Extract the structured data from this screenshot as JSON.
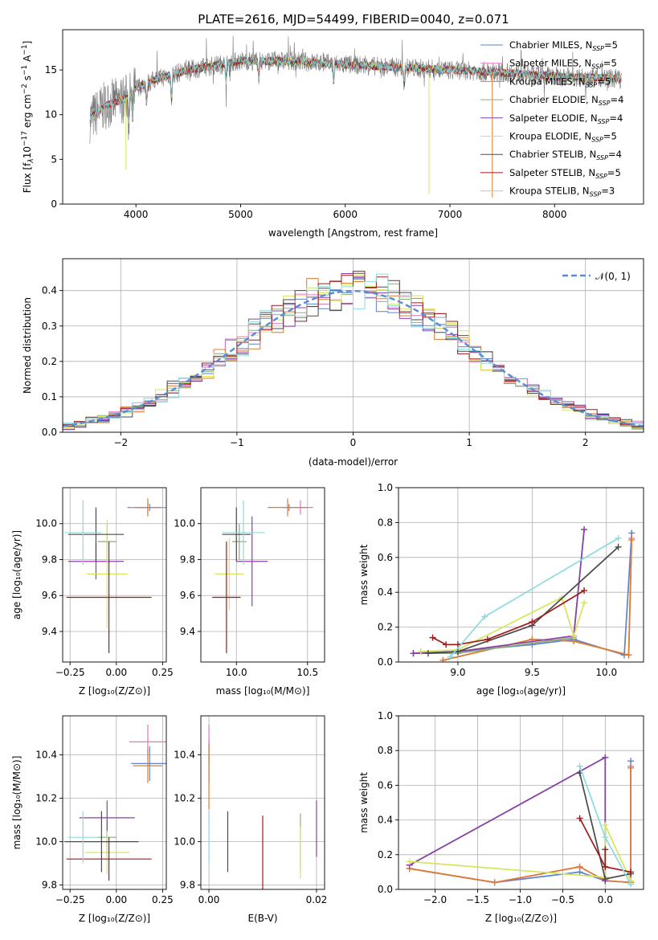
{
  "figure": {
    "title": "PLATE=2616, MJD=54499, FIBERID=0040, z=0.071"
  },
  "colors": [
    "#5a83d0",
    "#e377c2",
    "#dd7c2d",
    "#8aae79",
    "#8c3fa8",
    "#d7e55a",
    "#4a4a4a",
    "#a01a1a",
    "#8adbe0"
  ],
  "models": [
    {
      "name": "Chabrier MILES",
      "nssp": "5"
    },
    {
      "name": "Salpeter MILES",
      "nssp": "5"
    },
    {
      "name": "Kroupa MILES",
      "nssp": "5"
    },
    {
      "name": "Chabrier ELODIE",
      "nssp": "4"
    },
    {
      "name": "Salpeter ELODIE",
      "nssp": "4"
    },
    {
      "name": "Kroupa ELODIE",
      "nssp": "5"
    },
    {
      "name": "Chabrier STELIB",
      "nssp": "4"
    },
    {
      "name": "Salpeter STELIB",
      "nssp": "5"
    },
    {
      "name": "Kroupa STELIB",
      "nssp": "3"
    }
  ],
  "chart_data": [
    {
      "id": "spectrum",
      "type": "line",
      "xlabel": "wavelength [Angstrom, rest frame]",
      "ylabel_parts": [
        "Flux [f",
        "λ",
        "10",
        "−17",
        " erg cm",
        "−2",
        " s",
        "−1",
        " A",
        "−1",
        "]"
      ],
      "xlim": [
        3300,
        8850
      ],
      "ylim": [
        0,
        19.5
      ],
      "xticks": [
        4000,
        5000,
        6000,
        7000,
        8000
      ],
      "yticks": [
        0,
        5,
        10,
        15
      ],
      "grid": false,
      "legend_position": "top-right",
      "spectrum_range": [
        3560,
        8640
      ],
      "continuum": [
        [
          3560,
          9.5
        ],
        [
          3700,
          11
        ],
        [
          3900,
          11.8
        ],
        [
          4000,
          13
        ],
        [
          4200,
          14
        ],
        [
          4500,
          15
        ],
        [
          5000,
          16
        ],
        [
          5500,
          16
        ],
        [
          6000,
          15.6
        ],
        [
          6500,
          15.3
        ],
        [
          7000,
          15
        ],
        [
          7500,
          14.7
        ],
        [
          8000,
          14.3
        ],
        [
          8640,
          14
        ]
      ],
      "dips": [
        [
          3934,
          3
        ],
        [
          3968,
          3
        ],
        [
          4102,
          2.5
        ],
        [
          4340,
          3
        ],
        [
          4861,
          2
        ],
        [
          5175,
          2
        ],
        [
          5890,
          2
        ],
        [
          6563,
          2
        ]
      ],
      "spikes": [
        [
          3905,
          -8
        ],
        [
          6800,
          -14
        ],
        [
          7405,
          -14
        ]
      ]
    },
    {
      "id": "residuals",
      "type": "bar",
      "xlabel": "(data-model)/error",
      "ylabel": "Normed distribution",
      "xlim": [
        -2.5,
        2.5
      ],
      "ylim": [
        0,
        0.49
      ],
      "xticks": [
        -2,
        -1,
        0,
        1,
        2
      ],
      "yticks": [
        0.0,
        0.1,
        0.2,
        0.3,
        0.4
      ],
      "grid": true,
      "legend_position": "top-right",
      "legend_label": "𝒩(0, 1)",
      "bin_width": 0.1
    },
    {
      "id": "age_vs_Z",
      "type": "scatter",
      "xlabel": "Z [log₁₀(Z/Z⊙)]",
      "ylabel": "age  [log₁₀(age/yr)]",
      "xlim": [
        -0.29,
        0.27
      ],
      "ylim": [
        9.23,
        10.2
      ],
      "xticks": [
        -0.25,
        0.0,
        0.25
      ],
      "yticks": [
        9.4,
        9.6,
        9.8,
        10.0
      ],
      "grid": true,
      "points": [
        {
          "x": 0.18,
          "y": 10.09,
          "dx": 0.12,
          "dy": 0.02
        },
        {
          "x": 0.17,
          "y": 10.09,
          "dx": 0.1,
          "dy": 0.03
        },
        {
          "x": 0.17,
          "y": 10.09,
          "dx": 0.07,
          "dy": 0.05
        },
        {
          "x": -0.05,
          "y": 9.9,
          "dx": 0.05,
          "dy": 0.1
        },
        {
          "x": -0.11,
          "y": 9.79,
          "dx": 0.15,
          "dy": 0.1
        },
        {
          "x": -0.05,
          "y": 9.72,
          "dx": 0.11,
          "dy": 0.3
        },
        {
          "x": -0.11,
          "y": 9.94,
          "dx": 0.15,
          "dy": 0.15
        },
        {
          "x": -0.04,
          "y": 9.59,
          "dx": 0.23,
          "dy": 0.31
        },
        {
          "x": -0.18,
          "y": 9.95,
          "dx": 0.1,
          "dy": 0.18
        }
      ]
    },
    {
      "id": "age_vs_mass",
      "type": "scatter",
      "xlabel": "mass [log₁₀(M/M⊙)]",
      "ylabel": "",
      "xlim": [
        9.75,
        10.62
      ],
      "ylim": [
        9.23,
        10.2
      ],
      "xticks": [
        10.0,
        10.5
      ],
      "yticks": [
        9.4,
        9.6,
        9.8,
        10.0
      ],
      "grid": true,
      "points": [
        {
          "x": 10.37,
          "y": 10.09,
          "dx": 0.04,
          "dy": 0.02
        },
        {
          "x": 10.45,
          "y": 10.09,
          "dx": 0.09,
          "dy": 0.04
        },
        {
          "x": 10.36,
          "y": 10.09,
          "dx": 0.14,
          "dy": 0.05
        },
        {
          "x": 10.02,
          "y": 9.9,
          "dx": 0.05,
          "dy": 0.1
        },
        {
          "x": 10.11,
          "y": 9.79,
          "dx": 0.11,
          "dy": 0.25
        },
        {
          "x": 9.95,
          "y": 9.72,
          "dx": 0.1,
          "dy": 0.2
        },
        {
          "x": 10.0,
          "y": 9.94,
          "dx": 0.1,
          "dy": 0.15
        },
        {
          "x": 9.93,
          "y": 9.59,
          "dx": 0.1,
          "dy": 0.31
        },
        {
          "x": 10.05,
          "y": 9.95,
          "dx": 0.15,
          "dy": 0.18
        }
      ]
    },
    {
      "id": "weight_vs_age",
      "type": "line",
      "xlabel": "age  [log₁₀(age/yr)]",
      "ylabel": "mass weight",
      "xlim": [
        8.6,
        10.25
      ],
      "ylim": [
        0.0,
        1.0
      ],
      "xticks": [
        9.0,
        9.5,
        10.0
      ],
      "yticks": [
        0.0,
        0.2,
        0.4,
        0.6,
        0.8,
        1.0
      ],
      "grid": true,
      "series": [
        {
          "x": [
            8.7,
            9.0,
            9.5,
            9.78,
            10.12,
            10.17
          ],
          "y": [
            0.05,
            0.06,
            0.1,
            0.13,
            0.04,
            0.74
          ]
        },
        {
          "x": [
            8.9,
            9.5,
            9.78,
            10.15,
            10.17
          ],
          "y": [
            0.01,
            0.13,
            0.12,
            0.04,
            0.71
          ]
        },
        {
          "x": [
            8.9,
            9.5,
            9.78,
            10.15,
            10.17
          ],
          "y": [
            0.01,
            0.13,
            0.12,
            0.04,
            0.7
          ]
        },
        {
          "x": [
            8.7,
            9.0,
            9.78,
            9.85
          ],
          "y": [
            0.05,
            0.05,
            0.14,
            0.76
          ]
        },
        {
          "x": [
            8.7,
            9.0,
            9.78,
            9.85
          ],
          "y": [
            0.05,
            0.06,
            0.15,
            0.76
          ]
        },
        {
          "x": [
            8.75,
            9.0,
            9.7,
            9.78,
            9.85
          ],
          "y": [
            0.06,
            0.07,
            0.37,
            0.15,
            0.34
          ]
        },
        {
          "x": [
            8.8,
            9.0,
            9.5,
            10.08
          ],
          "y": [
            0.05,
            0.06,
            0.21,
            0.66
          ]
        },
        {
          "x": [
            8.83,
            8.92,
            9.0,
            9.2,
            9.5,
            9.85
          ],
          "y": [
            0.14,
            0.1,
            0.1,
            0.13,
            0.23,
            0.41
          ]
        },
        {
          "x": [
            8.95,
            9.18,
            10.08
          ],
          "y": [
            0.03,
            0.26,
            0.71
          ]
        }
      ]
    },
    {
      "id": "mass_vs_Z",
      "type": "scatter",
      "xlabel": "Z [log₁₀(Z/Z⊙)]",
      "ylabel": "mass [log₁₀(M/M⊙)]",
      "xlim": [
        -0.29,
        0.27
      ],
      "ylim": [
        9.78,
        10.58
      ],
      "xticks": [
        -0.25,
        0.0,
        0.25
      ],
      "yticks": [
        9.8,
        10.0,
        10.2,
        10.4
      ],
      "grid": true,
      "points": [
        {
          "x": 0.18,
          "y": 10.36,
          "dx": 0.1,
          "dy": 0.08
        },
        {
          "x": 0.17,
          "y": 10.46,
          "dx": 0.1,
          "dy": 0.08
        },
        {
          "x": 0.17,
          "y": 10.35,
          "dx": 0.08,
          "dy": 0.08
        },
        {
          "x": -0.05,
          "y": 10.02,
          "dx": 0.05,
          "dy": 0.08
        },
        {
          "x": -0.05,
          "y": 10.11,
          "dx": 0.15,
          "dy": 0.08
        },
        {
          "x": -0.05,
          "y": 9.95,
          "dx": 0.12,
          "dy": 0.1
        },
        {
          "x": -0.08,
          "y": 10.0,
          "dx": 0.2,
          "dy": 0.14
        },
        {
          "x": -0.04,
          "y": 9.92,
          "dx": 0.23,
          "dy": 0.1
        },
        {
          "x": -0.18,
          "y": 10.02,
          "dx": 0.08,
          "dy": 0.12
        }
      ]
    },
    {
      "id": "mass_vs_ebv",
      "type": "scatter",
      "xlabel": "E(B-V)",
      "ylabel": "",
      "xlim": [
        -0.0015,
        0.0215
      ],
      "ylim": [
        9.78,
        10.58
      ],
      "xticks": [
        0.0,
        0.02
      ],
      "yticks": [
        9.8,
        10.0,
        10.2,
        10.4
      ],
      "grid": true,
      "points": [
        {
          "x": 0.0,
          "y": 10.37,
          "dx": 0,
          "dy": 0.1
        },
        {
          "x": 0.0,
          "y": 10.45,
          "dx": 0,
          "dy": 0.09
        },
        {
          "x": 0.0,
          "y": 10.3,
          "dx": 0,
          "dy": 0.15
        },
        {
          "x": 0.017,
          "y": 10.0,
          "dx": 0,
          "dy": 0.13
        },
        {
          "x": 0.02,
          "y": 10.06,
          "dx": 0,
          "dy": 0.13
        },
        {
          "x": 0.017,
          "y": 9.95,
          "dx": 0,
          "dy": 0.12
        },
        {
          "x": 0.0035,
          "y": 10.0,
          "dx": 0,
          "dy": 0.14
        },
        {
          "x": 0.01,
          "y": 9.94,
          "dx": 0,
          "dy": 0.18
        },
        {
          "x": 0.0,
          "y": 10.02,
          "dx": 0,
          "dy": 0.12
        }
      ]
    },
    {
      "id": "weight_vs_Z",
      "type": "line",
      "xlabel": "Z [log₁₀(Z/Z⊙)]",
      "ylabel": "mass weight",
      "xlim": [
        -2.43,
        0.45
      ],
      "ylim": [
        0.0,
        1.0
      ],
      "xticks": [
        -2.0,
        -1.5,
        -1.0,
        -0.5,
        0.0
      ],
      "yticks": [
        0.0,
        0.2,
        0.4,
        0.6,
        0.8,
        1.0
      ],
      "grid": true,
      "series": [
        {
          "x": [
            -2.3,
            -1.3,
            -0.3,
            0.0,
            0.3,
            0.3
          ],
          "y": [
            0.12,
            0.04,
            0.1,
            0.05,
            0.04,
            0.74
          ]
        },
        {
          "x": [
            -2.3,
            -1.3,
            -0.3,
            0.0,
            0.3,
            0.3
          ],
          "y": [
            0.12,
            0.04,
            0.13,
            0.05,
            0.04,
            0.71
          ]
        },
        {
          "x": [
            -2.3,
            -1.3,
            -0.3,
            0.0,
            0.3,
            0.3
          ],
          "y": [
            0.12,
            0.04,
            0.13,
            0.05,
            0.04,
            0.7
          ]
        },
        {
          "x": [
            -2.3,
            0.0,
            0.0
          ],
          "y": [
            0.14,
            0.76,
            0.05
          ]
        },
        {
          "x": [
            -2.3,
            0.0,
            0.0
          ],
          "y": [
            0.14,
            0.76,
            0.05
          ]
        },
        {
          "x": [
            -2.3,
            0.0,
            0.0,
            0.3
          ],
          "y": [
            0.16,
            0.07,
            0.37,
            0.05
          ]
        },
        {
          "x": [
            -0.3,
            0.0,
            0.3
          ],
          "y": [
            0.67,
            0.06,
            0.09
          ]
        },
        {
          "x": [
            -0.3,
            0.0,
            0.0,
            0.0,
            0.3
          ],
          "y": [
            0.41,
            0.13,
            0.23,
            0.13,
            0.1
          ]
        },
        {
          "x": [
            -0.3,
            0.0,
            0.3
          ],
          "y": [
            0.71,
            0.3,
            0.03
          ]
        }
      ]
    }
  ]
}
